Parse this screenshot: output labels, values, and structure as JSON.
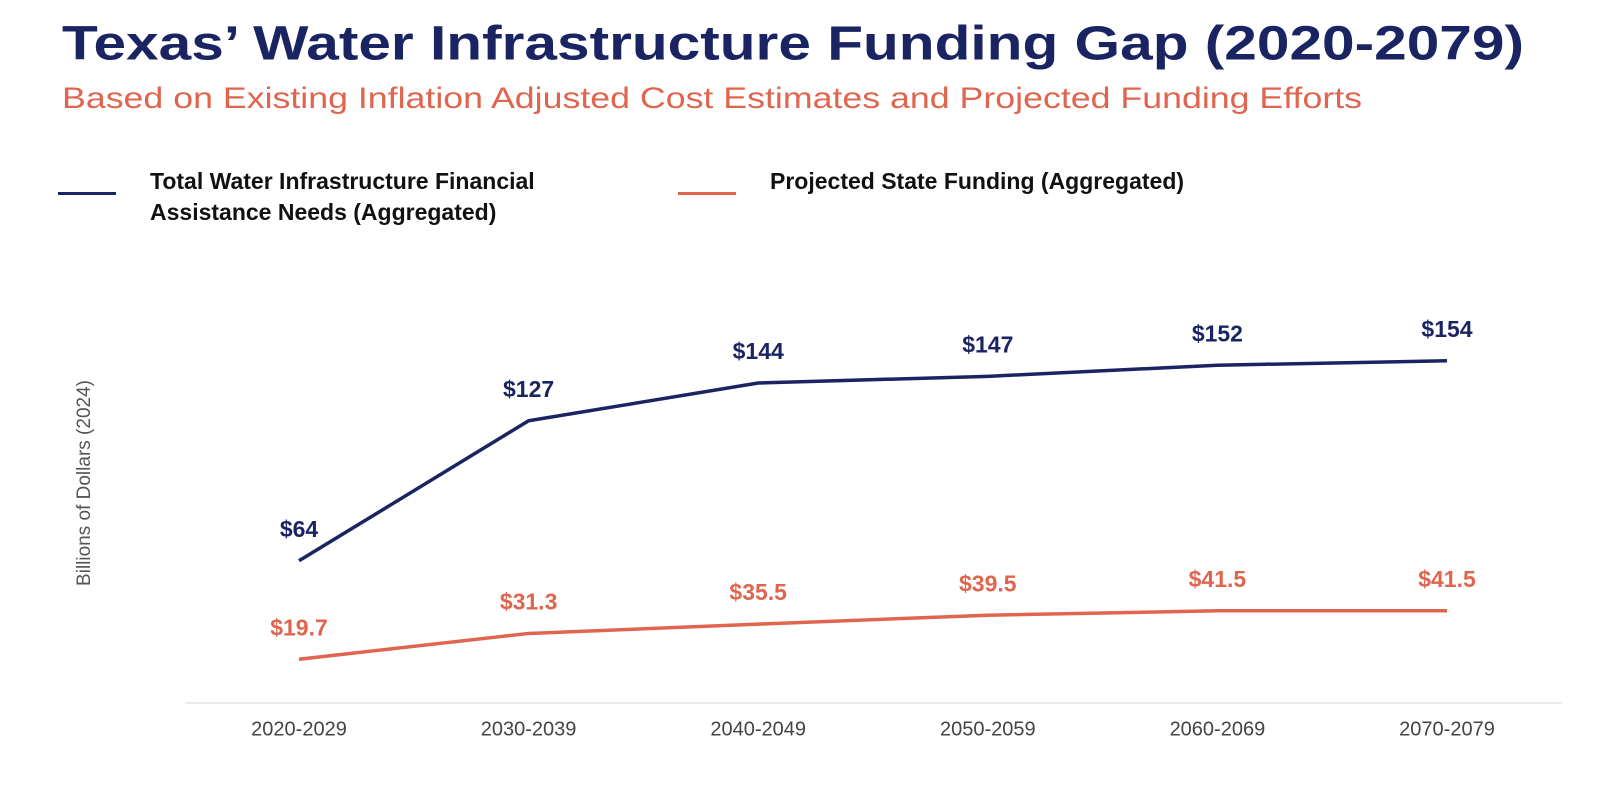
{
  "chart_data": {
    "type": "line",
    "title": "Texas’ Water Infrastructure Funding Gap (2020-2079)",
    "subtitle": "Based on Existing Inflation Adjusted Cost Estimates and Projected Funding Efforts",
    "y_label": "Billions of Dollars (2024)",
    "categories": [
      "2020-2029",
      "2030-2039",
      "2040-2049",
      "2050-2059",
      "2060-2069",
      "2070-2079"
    ],
    "series": [
      {
        "name": "Total Water Infrastructure Financial Assistance Needs (Aggregated)",
        "color": "#1b2462",
        "values": [
          64,
          127,
          144,
          147,
          152,
          154
        ],
        "value_labels": [
          "$64",
          "$127",
          "$144",
          "$147",
          "$152",
          "$154"
        ]
      },
      {
        "name": "Projected State Funding (Aggregated)",
        "color": "#e0654f",
        "values": [
          19.7,
          31.3,
          35.5,
          39.5,
          41.5,
          41.5
        ],
        "value_labels": [
          "$19.7",
          "$31.3",
          "$35.5",
          "$39.5",
          "$41.5",
          "$41.5"
        ]
      }
    ],
    "ylim": [
      0,
      180
    ]
  }
}
